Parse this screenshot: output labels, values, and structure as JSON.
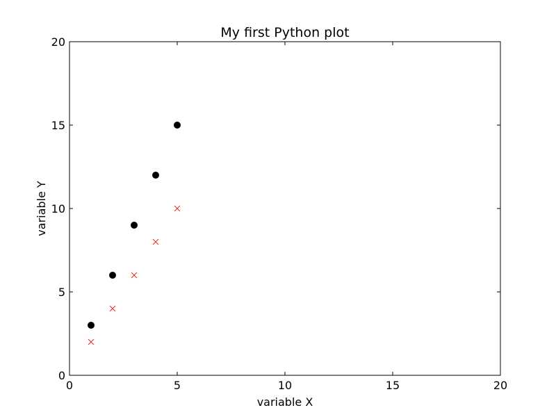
{
  "chart_data": {
    "type": "scatter",
    "title": "My first Python plot",
    "xlabel": "variable X",
    "ylabel": "variable Y",
    "xlim": [
      0,
      20
    ],
    "ylim": [
      0,
      20
    ],
    "xticks": [
      0,
      5,
      10,
      15,
      20
    ],
    "yticks": [
      0,
      5,
      10,
      15,
      20
    ],
    "grid": false,
    "series": [
      {
        "marker": "circle",
        "color": "#000000",
        "x": [
          1,
          2,
          3,
          4,
          5
        ],
        "y": [
          3,
          6,
          9,
          12,
          15
        ]
      },
      {
        "marker": "x",
        "color": "#e8281e",
        "x": [
          1,
          2,
          3,
          4,
          5
        ],
        "y": [
          2,
          4,
          6,
          8,
          10
        ]
      }
    ]
  }
}
